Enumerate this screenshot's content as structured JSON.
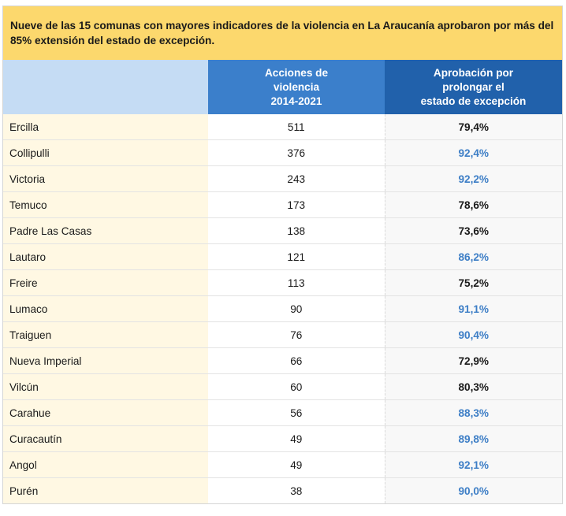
{
  "title": "Nueve de las 15 comunas con mayores indicadores de la violencia en La Araucanía aprobaron por más del 85% extensión del estado de excepción.",
  "headers": {
    "col1": "",
    "col2_lines": [
      "Acciones de",
      "violencia",
      "2014-2021"
    ],
    "col3_lines": [
      "Aprobación por",
      "prolongar el",
      "estado de excepción"
    ]
  },
  "colors": {
    "title_bg": "#fcd86d",
    "header_col1_bg": "#c5dcf4",
    "header_col2_bg": "#3b7fcb",
    "header_col3_bg": "#2161ab",
    "name_col_bg": "#fff8e3",
    "pct_col_bg": "#f8f8f8",
    "above_threshold": "#3d7ec6",
    "below_threshold": "#1a1a1a"
  },
  "rows": [
    {
      "comuna": "Ercilla",
      "acciones": "511",
      "aprobacion": "79,4%",
      "above_85": false
    },
    {
      "comuna": "Collipulli",
      "acciones": "376",
      "aprobacion": "92,4%",
      "above_85": true
    },
    {
      "comuna": "Victoria",
      "acciones": "243",
      "aprobacion": "92,2%",
      "above_85": true
    },
    {
      "comuna": "Temuco",
      "acciones": "173",
      "aprobacion": "78,6%",
      "above_85": false
    },
    {
      "comuna": "Padre Las Casas",
      "acciones": "138",
      "aprobacion": "73,6%",
      "above_85": false
    },
    {
      "comuna": "Lautaro",
      "acciones": "121",
      "aprobacion": "86,2%",
      "above_85": true
    },
    {
      "comuna": "Freire",
      "acciones": "113",
      "aprobacion": "75,2%",
      "above_85": false
    },
    {
      "comuna": "Lumaco",
      "acciones": "90",
      "aprobacion": "91,1%",
      "above_85": true
    },
    {
      "comuna": "Traiguen",
      "acciones": "76",
      "aprobacion": "90,4%",
      "above_85": true
    },
    {
      "comuna": "Nueva Imperial",
      "acciones": "66",
      "aprobacion": "72,9%",
      "above_85": false
    },
    {
      "comuna": "Vilcún",
      "acciones": "60",
      "aprobacion": "80,3%",
      "above_85": false
    },
    {
      "comuna": "Carahue",
      "acciones": "56",
      "aprobacion": "88,3%",
      "above_85": true
    },
    {
      "comuna": "Curacautín",
      "acciones": "49",
      "aprobacion": "89,8%",
      "above_85": true
    },
    {
      "comuna": "Angol",
      "acciones": "49",
      "aprobacion": "92,1%",
      "above_85": true
    },
    {
      "comuna": "Purén",
      "acciones": "38",
      "aprobacion": "90,0%",
      "above_85": true
    }
  ],
  "chart_data": {
    "type": "table",
    "title": "Nueve de las 15 comunas con mayores indicadores de la violencia en La Araucanía aprobaron por más del 85% extensión del estado de excepción.",
    "columns": [
      "",
      "Acciones de violencia 2014-2021",
      "Aprobación por prolongar el estado de excepción"
    ],
    "categories": [
      "Ercilla",
      "Collipulli",
      "Victoria",
      "Temuco",
      "Padre Las Casas",
      "Lautaro",
      "Freire",
      "Lumaco",
      "Traiguen",
      "Nueva Imperial",
      "Vilcún",
      "Carahue",
      "Curacautín",
      "Angol",
      "Purén"
    ],
    "series": [
      {
        "name": "Acciones de violencia 2014-2021",
        "values": [
          511,
          376,
          243,
          173,
          138,
          121,
          113,
          90,
          76,
          66,
          60,
          56,
          49,
          49,
          38
        ]
      },
      {
        "name": "Aprobación por prolongar el estado de excepción",
        "values": [
          79.4,
          92.4,
          92.2,
          78.6,
          73.6,
          86.2,
          75.2,
          91.1,
          90.4,
          72.9,
          80.3,
          88.3,
          89.8,
          92.1,
          90.0
        ]
      }
    ]
  }
}
